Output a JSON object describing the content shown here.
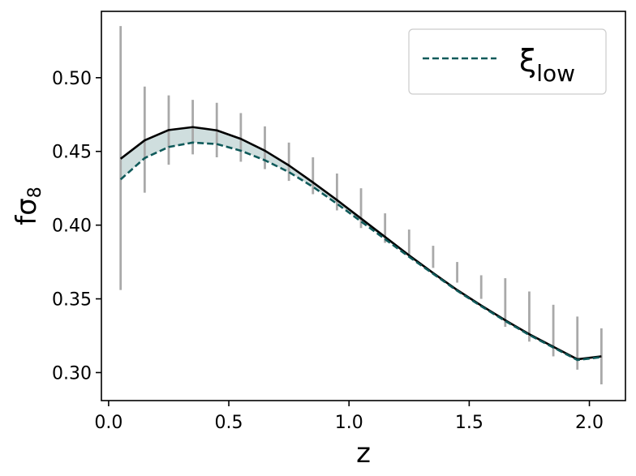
{
  "chart_data": {
    "type": "line",
    "title": "",
    "xlabel": "z",
    "ylabel": "fσ8",
    "ylabel_main": "f",
    "ylabel_symbol": "σ",
    "ylabel_sub": "8",
    "xlim": [
      -0.03,
      2.15
    ],
    "ylim": [
      0.281,
      0.545
    ],
    "xticks": [
      0.0,
      0.5,
      1.0,
      1.5,
      2.0
    ],
    "xtick_labels": [
      "0.0",
      "0.5",
      "1.0",
      "1.5",
      "2.0"
    ],
    "yticks": [
      0.3,
      0.35,
      0.4,
      0.45,
      0.5
    ],
    "ytick_labels": [
      "0.30",
      "0.35",
      "0.40",
      "0.45",
      "0.50"
    ],
    "grid": false,
    "legend": {
      "placement": "top-right",
      "entries": [
        {
          "series": "xi_low",
          "label_symbol": "ξ",
          "label_sub": "low",
          "style": "dashed",
          "color": "#0f5a5a"
        }
      ]
    },
    "x": [
      0.05,
      0.15,
      0.25,
      0.35,
      0.45,
      0.55,
      0.65,
      0.75,
      0.85,
      0.95,
      1.05,
      1.15,
      1.25,
      1.35,
      1.45,
      1.55,
      1.65,
      1.75,
      1.85,
      1.95,
      2.05
    ],
    "series": [
      {
        "key": "fiducial",
        "style": "solid",
        "color": "#000000",
        "values": [
          0.445,
          0.4575,
          0.4645,
          0.4665,
          0.4643,
          0.4585,
          0.4505,
          0.4405,
          0.429,
          0.417,
          0.4045,
          0.392,
          0.3795,
          0.3675,
          0.356,
          0.3455,
          0.3355,
          0.326,
          0.3175,
          0.309,
          0.311
        ]
      },
      {
        "key": "xi_low",
        "name": "ξlow",
        "style": "dashed",
        "color": "#0f5a5a",
        "values": [
          0.431,
          0.4455,
          0.453,
          0.456,
          0.455,
          0.4505,
          0.444,
          0.436,
          0.426,
          0.4145,
          0.4025,
          0.3905,
          0.3785,
          0.367,
          0.3555,
          0.345,
          0.335,
          0.3255,
          0.317,
          0.3085,
          0.3105
        ]
      }
    ],
    "error_bars": {
      "color": "#a9a9a9",
      "x": [
        0.05,
        0.15,
        0.25,
        0.35,
        0.45,
        0.55,
        0.65,
        0.75,
        0.85,
        0.95,
        1.05,
        1.15,
        1.25,
        1.35,
        1.45,
        1.55,
        1.65,
        1.75,
        1.85,
        1.95,
        2.05
      ],
      "low": [
        0.356,
        0.422,
        0.441,
        0.448,
        0.446,
        0.443,
        0.438,
        0.43,
        0.421,
        0.41,
        0.398,
        0.388,
        0.38,
        0.371,
        0.361,
        0.35,
        0.331,
        0.321,
        0.311,
        0.302,
        0.292
      ],
      "high": [
        0.535,
        0.494,
        0.488,
        0.485,
        0.483,
        0.476,
        0.467,
        0.456,
        0.446,
        0.435,
        0.425,
        0.408,
        0.397,
        0.386,
        0.375,
        0.366,
        0.364,
        0.355,
        0.346,
        0.338,
        0.33
      ]
    },
    "fill_between": {
      "series_a": "fiducial",
      "series_b": "xi_low",
      "color": "#0f5a5a",
      "opacity": 0.2
    }
  }
}
